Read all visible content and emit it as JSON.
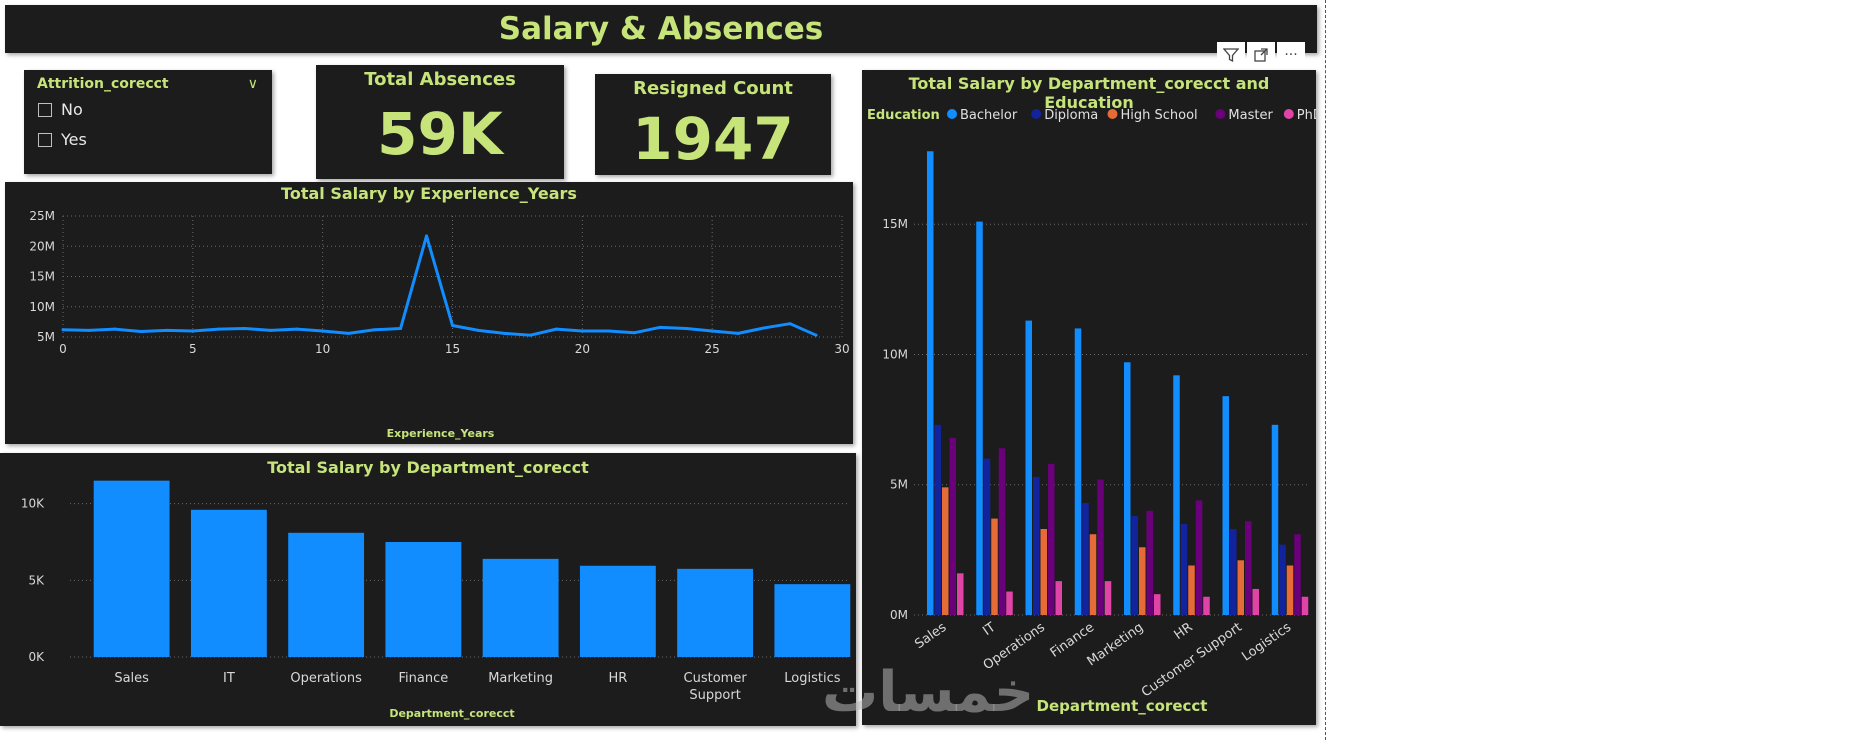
{
  "page_title": "Salary & Absences",
  "slicer": {
    "header": "Attrition_corecct",
    "options": [
      "No",
      "Yes"
    ]
  },
  "kpis": {
    "total_absences": {
      "label": "Total Absences",
      "value": "59K"
    },
    "resigned_count": {
      "label": "Resigned Count",
      "value": "1947"
    }
  },
  "toolbar": {
    "filter_icon": "filter-icon",
    "focus_icon": "focus-mode-icon",
    "more_icon": "more-options-icon",
    "more_label": "···"
  },
  "watermark": "خمسات",
  "colors": {
    "accent": "#c6e47a",
    "blue": "#118dff",
    "bg": "#1c1c1c"
  },
  "chart_data": [
    {
      "type": "line",
      "title": "Total Salary by Experience_Years",
      "xlabel": "Experience_Years",
      "ylabel": "",
      "x": [
        0,
        1,
        2,
        3,
        4,
        5,
        6,
        7,
        8,
        9,
        10,
        11,
        12,
        13,
        14,
        15,
        16,
        17,
        18,
        19,
        20,
        21,
        22,
        23,
        24,
        25,
        26,
        27,
        28,
        29
      ],
      "values": [
        6.2,
        6.1,
        6.3,
        5.9,
        6.1,
        6.0,
        6.3,
        6.4,
        6.1,
        6.3,
        6.0,
        5.6,
        6.2,
        6.4,
        21.7,
        6.9,
        6.1,
        5.6,
        5.3,
        6.3,
        6.0,
        6.0,
        5.7,
        6.6,
        6.4,
        6.0,
        5.6,
        6.5,
        7.2,
        5.3
      ],
      "ylim": [
        5,
        25
      ],
      "yticks": [
        "5M",
        "10M",
        "15M",
        "20M",
        "25M"
      ],
      "xticks": [
        "0",
        "5",
        "10",
        "15",
        "20",
        "25",
        "30"
      ],
      "grid": true
    },
    {
      "type": "bar",
      "title": "Total Salary by Department_corecct",
      "xlabel": "Department_corecct",
      "ylabel": "",
      "categories": [
        "Sales",
        "IT",
        "Operations",
        "Finance",
        "Marketing",
        "HR",
        "Customer Support",
        "Logistics"
      ],
      "values": [
        11500,
        9600,
        8100,
        7500,
        6400,
        5950,
        5750,
        4750
      ],
      "ylim": [
        0,
        12000
      ],
      "yticks": [
        "0K",
        "5K",
        "10K"
      ],
      "grid": true
    },
    {
      "type": "bar",
      "title": "Total Salary by Department_corecct and Education",
      "xlabel": "Department_corecct",
      "ylabel": "",
      "legend_title": "Education",
      "legend_position": "top-left",
      "categories": [
        "Sales",
        "IT",
        "Operations",
        "Finance",
        "Marketing",
        "HR",
        "Customer Support",
        "Logistics"
      ],
      "series": [
        {
          "name": "Bachelor",
          "color": "#118dff",
          "values": [
            17.8,
            15.1,
            11.3,
            11.0,
            9.7,
            9.2,
            8.4,
            7.3
          ]
        },
        {
          "name": "Diploma",
          "color": "#12239e",
          "values": [
            7.3,
            6.0,
            5.3,
            4.3,
            3.8,
            3.5,
            3.3,
            2.7
          ]
        },
        {
          "name": "High School",
          "color": "#e66c37",
          "values": [
            4.9,
            3.7,
            3.3,
            3.1,
            2.6,
            1.9,
            2.1,
            1.9
          ]
        },
        {
          "name": "Master",
          "color": "#6b007b",
          "values": [
            6.8,
            6.4,
            5.8,
            5.2,
            4.0,
            4.4,
            3.6,
            3.1
          ]
        },
        {
          "name": "PhD",
          "color": "#e044a7",
          "values": [
            1.6,
            0.9,
            1.3,
            1.3,
            0.8,
            0.7,
            1.0,
            0.7
          ]
        }
      ],
      "ylim": [
        0,
        19
      ],
      "yticks": [
        "0M",
        "5M",
        "10M",
        "15M"
      ],
      "grid": true
    }
  ]
}
